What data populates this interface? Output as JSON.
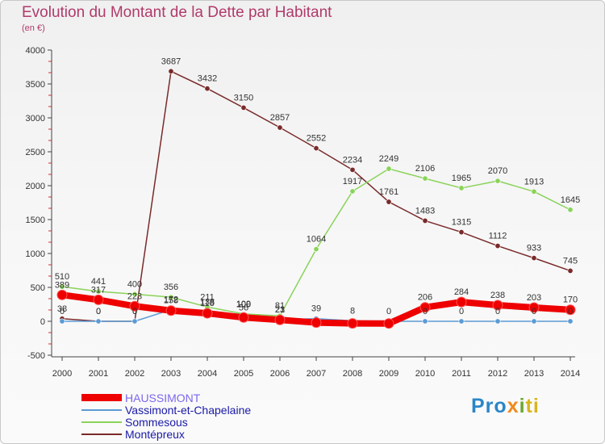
{
  "title": "Evolution du Montant de la Dette par Habitant",
  "subtitle": "(en €)",
  "logo": {
    "text": "Proxiti",
    "parts": [
      "Pro",
      "x",
      "i",
      "ti"
    ]
  },
  "chart_data": {
    "type": "line",
    "title": "Evolution du Montant de la Dette par Habitant",
    "ylabel": "(en €)",
    "ylim": [
      -500,
      4000
    ],
    "yticks": [
      -500,
      0,
      500,
      1000,
      1500,
      2000,
      2500,
      3000,
      3500,
      4000
    ],
    "x": [
      "2000",
      "2001",
      "2002",
      "2003",
      "2004",
      "2005",
      "2006",
      "2007",
      "2008",
      "2009",
      "2010",
      "2011",
      "2012",
      "2013",
      "2014"
    ],
    "legend_position": "bottom-left",
    "grid": false,
    "series": [
      {
        "name": "HAUSSIMONT",
        "color": "#ee0000",
        "values": [
          389,
          317,
          223,
          158,
          118,
          56,
          21,
          -19,
          -31,
          -32,
          206,
          284,
          238,
          203,
          170
        ],
        "labels": [
          "389",
          "317",
          "223",
          "158",
          "118",
          "56",
          "21",
          "",
          "",
          "",
          "206",
          "284",
          "238",
          "203",
          "170"
        ]
      },
      {
        "name": "Vassimont-et-Chapelaine",
        "color": "#5b9bd5",
        "values": [
          0,
          0,
          0,
          172,
          138,
          100,
          23,
          39,
          8,
          0,
          0,
          0,
          0,
          0,
          0
        ],
        "labels": [
          "0",
          "0",
          "0",
          "172",
          "138",
          "100",
          "23",
          "39",
          "8",
          "0",
          "0",
          "0",
          "0",
          "0",
          "0"
        ]
      },
      {
        "name": "Sommesous",
        "color": "#8ad35a",
        "values": [
          510,
          441,
          400,
          356,
          211,
          109,
          81,
          1064,
          1917,
          2249,
          2106,
          1965,
          2070,
          1913,
          1645
        ],
        "labels": [
          "510",
          "441",
          "400",
          "356",
          "211",
          "109",
          "81",
          "1064",
          "1917",
          "2249",
          "2106",
          "1965",
          "2070",
          "1913",
          "1645"
        ]
      },
      {
        "name": "Montépreux",
        "color": "#7a2a2a",
        "values": [
          38,
          0,
          0,
          3687,
          3432,
          3150,
          2857,
          2552,
          2234,
          1761,
          1483,
          1315,
          1112,
          933,
          745
        ],
        "labels": [
          "38",
          "0",
          "0",
          "3687",
          "3432",
          "3150",
          "2857",
          "2552",
          "2234",
          "1761",
          "1483",
          "1315",
          "1112",
          "933",
          "745"
        ]
      }
    ]
  }
}
